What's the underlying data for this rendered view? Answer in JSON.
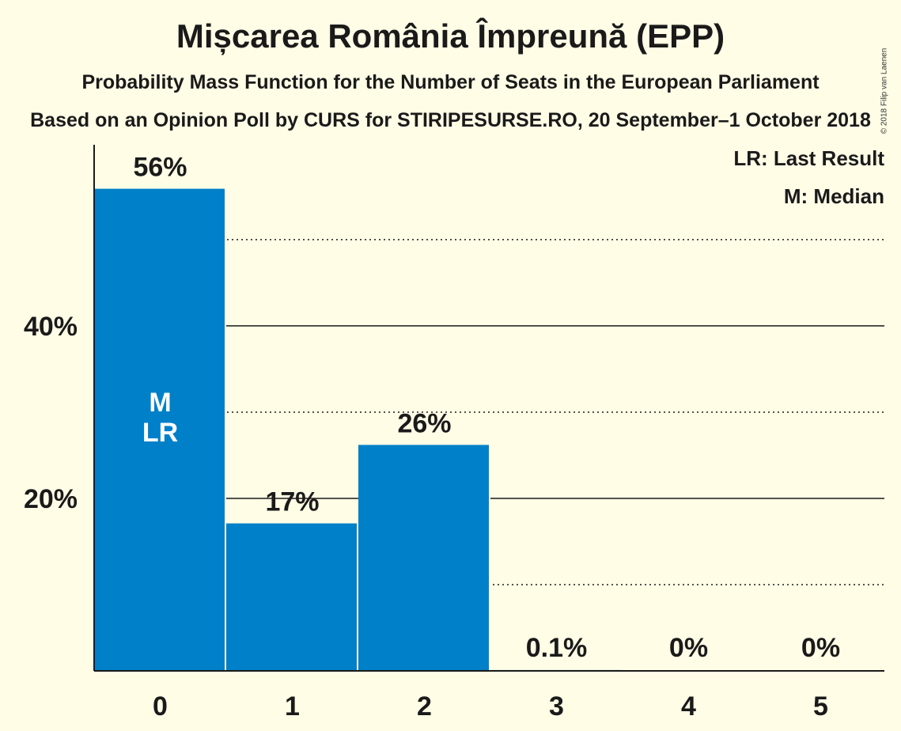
{
  "title": "Mișcarea România Împreună (EPP)",
  "subtitle": "Probability Mass Function for the Number of Seats in the European Parliament",
  "subtitle2": "Based on an Opinion Poll by CURS for STIRIPESURSE.RO, 20 September–1 October 2018",
  "copyright": "© 2018 Filip van Laenen",
  "legend": {
    "last_result": "LR: Last Result",
    "median": "M: Median"
  },
  "colors": {
    "bar": "#0080c8",
    "background": "#fffde6",
    "text": "#1a1a1a"
  },
  "chart_data": {
    "type": "bar",
    "categories": [
      "0",
      "1",
      "2",
      "3",
      "4",
      "5"
    ],
    "values": [
      55.9,
      17.1,
      26.2,
      0.1,
      0,
      0
    ],
    "value_labels": [
      "56%",
      "17%",
      "26%",
      "0.1%",
      "0%",
      "0%"
    ],
    "bar_markers": [
      [
        "M",
        "LR"
      ],
      [],
      [],
      [],
      [],
      []
    ],
    "yticks": [
      {
        "value": 20,
        "label": "20%"
      },
      {
        "value": 40,
        "label": "40%"
      }
    ],
    "minor_gridlines": [
      10,
      30,
      50
    ],
    "ylim": [
      0,
      61
    ],
    "legend_position": "top-right"
  }
}
